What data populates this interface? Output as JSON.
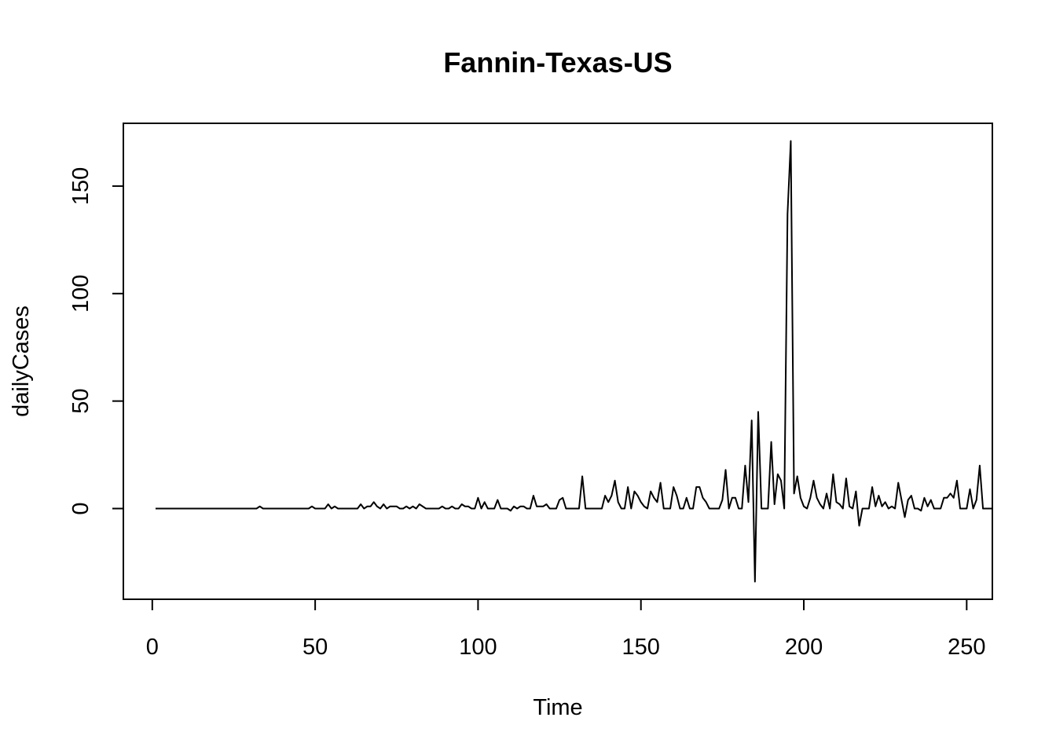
{
  "chart_data": {
    "type": "line",
    "title": "Fannin-Texas-US",
    "xlabel": "Time",
    "ylabel": "dailyCases",
    "xlim": [
      1,
      248
    ],
    "ylim": [
      -34,
      171
    ],
    "xticks": [
      0,
      50,
      100,
      150,
      200,
      250
    ],
    "yticks": [
      0,
      50,
      100,
      150
    ],
    "grid": false,
    "line_color": "#000000",
    "x_start": 1,
    "series": [
      {
        "values": [
          0,
          0,
          0,
          0,
          0,
          0,
          0,
          0,
          0,
          0,
          0,
          0,
          0,
          0,
          0,
          0,
          0,
          0,
          0,
          0,
          0,
          0,
          0,
          0,
          0,
          0,
          0,
          0,
          0,
          0,
          0,
          0,
          1,
          0,
          0,
          0,
          0,
          0,
          0,
          0,
          0,
          0,
          0,
          0,
          0,
          0,
          0,
          0,
          1,
          0,
          0,
          0,
          0,
          2,
          0,
          1,
          0,
          0,
          0,
          0,
          0,
          0,
          0,
          2,
          0,
          1,
          1,
          3,
          1,
          0,
          2,
          0,
          1,
          1,
          1,
          0,
          0,
          1,
          0,
          1,
          0,
          2,
          1,
          0,
          0,
          0,
          0,
          0,
          1,
          0,
          0,
          1,
          0,
          0,
          2,
          1,
          1,
          0,
          0,
          5,
          0,
          3,
          0,
          0,
          0,
          4,
          0,
          0,
          0,
          -1,
          1,
          0,
          1,
          1,
          0,
          0,
          6,
          1,
          1,
          1,
          2,
          0,
          0,
          0,
          4,
          5,
          0,
          0,
          0,
          0,
          0,
          15,
          0,
          0,
          0,
          0,
          0,
          0,
          6,
          3,
          6,
          13,
          3,
          0,
          0,
          10,
          0,
          8,
          6,
          3,
          1,
          0,
          8,
          5,
          3,
          12,
          0,
          0,
          0,
          10,
          6,
          0,
          0,
          5,
          0,
          0,
          10,
          10,
          5,
          3,
          0,
          0,
          0,
          0,
          4,
          18,
          0,
          5,
          5,
          0,
          0,
          20,
          3,
          41,
          -34,
          45,
          0,
          0,
          0,
          31,
          2,
          16,
          13,
          0,
          137,
          171,
          7,
          15,
          5,
          1,
          0,
          5,
          13,
          5,
          2,
          0,
          7,
          0,
          16,
          3,
          2,
          0,
          14,
          1,
          0,
          8,
          -8,
          0,
          0,
          0,
          10,
          1,
          6,
          1,
          3,
          0,
          1,
          0,
          12,
          4,
          -4,
          4,
          6,
          0,
          0,
          -1,
          5,
          1,
          4,
          0,
          0,
          0,
          5,
          5,
          7,
          5,
          13,
          0,
          0,
          0,
          9,
          0,
          4,
          20,
          0,
          0,
          0,
          0
        ]
      }
    ]
  }
}
